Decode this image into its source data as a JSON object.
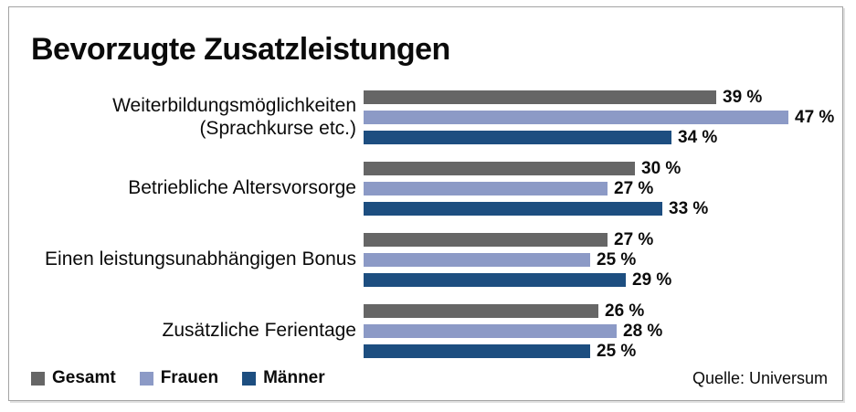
{
  "title": "Bevorzugte Zusatzleistungen",
  "source": "Quelle: Universum",
  "legend": [
    {
      "key": "gesamt",
      "label": "Gesamt",
      "color": "#666666"
    },
    {
      "key": "frauen",
      "label": "Frauen",
      "color": "#8C9AC6"
    },
    {
      "key": "maenner",
      "label": "Männer",
      "color": "#1D4E80"
    }
  ],
  "chart_data": {
    "type": "bar",
    "orientation": "horizontal",
    "title": "Bevorzugte Zusatzleistungen",
    "categories": [
      "Weiterbildungsmöglichkeiten (Sprachkurse etc.)",
      "Betriebliche Altersvorsorge",
      "Einen leistungsunabhängigen Bonus",
      "Zusätzliche Ferientage"
    ],
    "category_lines": [
      [
        "Weiterbildungsmöglichkeiten",
        "(Sprachkurse etc.)"
      ],
      [
        "Betriebliche Altersvorsorge"
      ],
      [
        "Einen leistungsunabhängigen Bonus"
      ],
      [
        "Zusätzliche Ferientage"
      ]
    ],
    "series": [
      {
        "key": "gesamt",
        "name": "Gesamt",
        "color": "#666666",
        "values": [
          39,
          30,
          27,
          26
        ]
      },
      {
        "key": "frauen",
        "name": "Frauen",
        "color": "#8C9AC6",
        "values": [
          47,
          27,
          25,
          28
        ]
      },
      {
        "key": "maenner",
        "name": "Männer",
        "color": "#1D4E80",
        "values": [
          34,
          33,
          29,
          25
        ]
      }
    ],
    "value_label_format": "{v} %",
    "xlabel": "",
    "ylabel": "",
    "xlim": [
      0,
      50
    ],
    "grid": false,
    "legend_position": "bottom-left",
    "source_position": "bottom-right"
  }
}
